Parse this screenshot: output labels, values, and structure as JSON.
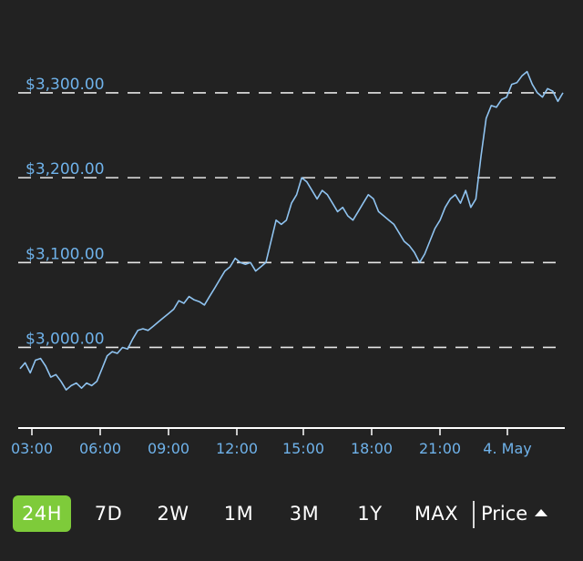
{
  "chart_data": {
    "type": "line",
    "title": "",
    "xlabel": "",
    "ylabel": "",
    "ylim": [
      2905,
      3345
    ],
    "y_ticks": [
      {
        "value": 3000,
        "label": "$3,000.00"
      },
      {
        "value": 3100,
        "label": "$3,100.00"
      },
      {
        "value": 3200,
        "label": "$3,200.00"
      },
      {
        "value": 3300,
        "label": "$3,300.00"
      }
    ],
    "x_ticks": [
      "03:00",
      "06:00",
      "09:00",
      "12:00",
      "15:00",
      "18:00",
      "21:00",
      "4. May"
    ],
    "grid": "horizontal-dashed",
    "line_color": "#8fc3f0",
    "tick_color": "#6fb2ea",
    "series": [
      {
        "values": [
          2975,
          2982,
          2970,
          2985,
          2987,
          2978,
          2965,
          2968,
          2960,
          2950,
          2955,
          2958,
          2952,
          2958,
          2955,
          2960,
          2975,
          2990,
          2995,
          2993,
          3000,
          2998,
          3010,
          3020,
          3022,
          3020,
          3025,
          3030,
          3035,
          3040,
          3045,
          3055,
          3052,
          3060,
          3056,
          3054,
          3050,
          3060,
          3070,
          3080,
          3090,
          3095,
          3105,
          3100,
          3098,
          3100,
          3090,
          3095,
          3100,
          3125,
          3150,
          3145,
          3150,
          3170,
          3180,
          3200,
          3195,
          3185,
          3175,
          3185,
          3180,
          3170,
          3160,
          3165,
          3155,
          3150,
          3160,
          3170,
          3180,
          3175,
          3160,
          3155,
          3150,
          3145,
          3135,
          3125,
          3120,
          3112,
          3100,
          3110,
          3125,
          3140,
          3150,
          3165,
          3175,
          3180,
          3170,
          3185,
          3165,
          3175,
          3225,
          3270,
          3285,
          3283,
          3292,
          3295,
          3310,
          3312,
          3320,
          3325,
          3310,
          3300,
          3295,
          3305,
          3302,
          3290,
          3300
        ]
      }
    ]
  },
  "range_buttons": [
    {
      "label": "24H",
      "active": true
    },
    {
      "label": "7D",
      "active": false
    },
    {
      "label": "2W",
      "active": false
    },
    {
      "label": "1M",
      "active": false
    },
    {
      "label": "3M",
      "active": false
    },
    {
      "label": "1Y",
      "active": false
    },
    {
      "label": "MAX",
      "active": false
    }
  ],
  "metric_selector": {
    "label": "Price",
    "icon": "caret-up-icon"
  }
}
